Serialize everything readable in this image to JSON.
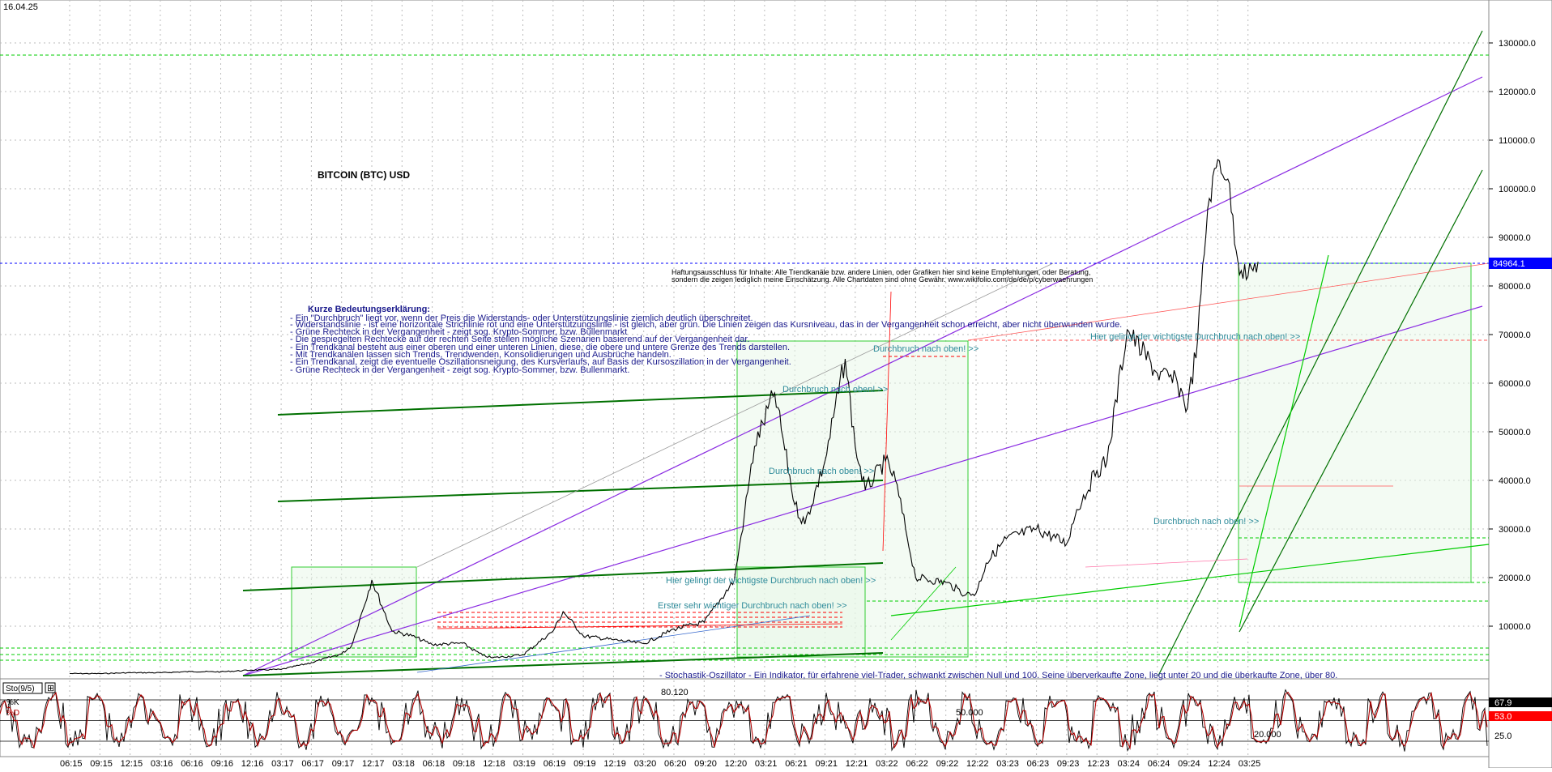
{
  "header": {
    "date": "16.04.25"
  },
  "title": "BITCOIN (BTC) USD",
  "price_marker": {
    "value": "84964.1",
    "color": "#0000ff"
  },
  "disclaimer": {
    "line1": "Haftungsausschluss für Inhalte: Alle Trendkanäle bzw. andere Linien, oder Grafiken hier sind keine Empfehlungen, oder Beratung,",
    "line2": "sondern die zeigen lediglich meine  Einschätzung. Alle Chartdaten sind ohne Gewähr.  www.wikifolio.com/de/de/p/cyberwaehrungen"
  },
  "legend": {
    "heading": "Kurze Bedeutungserklärung:",
    "lines": [
      "- Ein \"Durchbruch\" liegt vor, wenn der Preis die Widerstands- oder Unterstützungslinie ziemlich deutlich überschreitet.",
      "- Widerstandslinie - ist eine horizontale Strichlinie rot und eine Unterstützungslinie - ist gleich, aber grün. Die Linien zeigen das Kursniveau, das in der Vergangenheit schon erreicht, aber nicht überwunden wurde.",
      "- Grüne Rechteck in der Vergangenheit - zeigt sog. Krypto-Sommer, bzw. Bullenmarkt",
      "- Die gespiegelten Rechtecke auf der rechten Seite stellen mögliche Szenarien basierend auf der Vergangenheit dar.",
      "- Ein Trendkanal besteht aus einer oberen und einer unteren Linien, diese, die obere und untere Grenze des Trends darstellen.",
      "- Mit Trendkanälen lassen sich Trends, Trendwenden, Konsolidierungen und Ausbrüche handeln.",
      "- Ein Trendkanal, zeigt die eventuelle Oszillationsneigung, des Kursverlaufs, auf Basis der Kursoszillation in der Vergangenheit.",
      "- Grüne Rechteck in der Vergangenheit - zeigt sog. Krypto-Sommer, bzw. Bullenmarkt."
    ]
  },
  "annotations": {
    "breakout_up": "Durchbruch nach oben! >>",
    "most_important_1": "Hier gelingt der wichtigste Durchbruch nach oben! >>",
    "first_important": "Erster sehr wichtiger Durchbruch nach oben! >>",
    "most_important_2": "Hier gelingt der wichtigste Durchbruch nach oben! >>",
    "stochastic_note": "- Stochastik-Oszillator - Ein Indikator, für erfahrene viel-Trader, schwankt zwischen Null und 100. Seine überverkaufte Zone, liegt unter 20 und die überkaufte Zone, über 80."
  },
  "oscillator": {
    "label": "Sto(9/5)",
    "k_label": "%K",
    "d_label": "%D",
    "level_80": "80.120",
    "level_50": "50.000",
    "level_20": "20.000",
    "k_value": "67.9",
    "d_value": "53.0",
    "axis_25": "25.0"
  },
  "chart_data": {
    "type": "line",
    "title": "BITCOIN (BTC) USD",
    "x_ticks": [
      "06:15",
      "09:15",
      "12:15",
      "03:16",
      "06:16",
      "09:16",
      "12:16",
      "03:17",
      "06:17",
      "09:17",
      "12:17",
      "03:18",
      "06:18",
      "09:18",
      "12:18",
      "03:19",
      "06:19",
      "09:19",
      "12:19",
      "03:20",
      "06:20",
      "09:20",
      "12:20",
      "03:21",
      "06:21",
      "09:21",
      "12:21",
      "03:22",
      "06:22",
      "09:22",
      "12:22",
      "03:23",
      "06:23",
      "09:23",
      "12:23",
      "03:24",
      "06:24",
      "09:24",
      "12:24",
      "03:25"
    ],
    "y_ticks": [
      "10000.0",
      "20000.0",
      "30000.0",
      "40000.0",
      "50000.0",
      "60000.0",
      "70000.0",
      "80000.0",
      "90000.0",
      "100000.0",
      "110000.0",
      "120000.0",
      "130000.0"
    ],
    "ylim": [
      0,
      135000
    ],
    "grid": true,
    "series": [
      {
        "name": "BTC",
        "color": "#000000",
        "x": [
          "06:15",
          "09:15",
          "12:15",
          "03:16",
          "06:16",
          "09:16",
          "12:16",
          "03:17",
          "06:17",
          "09:17",
          "10:17",
          "12:17",
          "02:18",
          "04:18",
          "06:18",
          "09:18",
          "11:18",
          "12:18",
          "03:19",
          "06:19",
          "07:19",
          "09:19",
          "12:19",
          "03:20",
          "06:20",
          "09:20",
          "12:20",
          "01:21",
          "02:21",
          "04:21",
          "06:21",
          "07:21",
          "09:21",
          "11:21",
          "12:21",
          "01:22",
          "03:22",
          "04:22",
          "05:22",
          "06:22",
          "09:22",
          "11:22",
          "12:22",
          "01:23",
          "03:23",
          "06:23",
          "09:23",
          "10:23",
          "12:23",
          "01:24",
          "03:24",
          "06:24",
          "08:24",
          "09:24",
          "10:24",
          "11:24",
          "12:24",
          "01:25",
          "02:25",
          "03:25",
          "04:25"
        ],
        "values": [
          250,
          240,
          430,
          420,
          670,
          610,
          960,
          1100,
          2500,
          4300,
          6000,
          19500,
          9000,
          8000,
          6200,
          6500,
          4000,
          3500,
          4100,
          9000,
          13000,
          8000,
          7200,
          6400,
          9400,
          10800,
          19500,
          33000,
          47000,
          58000,
          35000,
          31000,
          44000,
          65000,
          47000,
          38000,
          44000,
          40000,
          30000,
          20000,
          19000,
          16500,
          16800,
          23000,
          28000,
          30000,
          27000,
          34000,
          42000,
          44000,
          71000,
          62000,
          60000,
          55000,
          69000,
          96000,
          106000,
          102000,
          85000,
          82000,
          84964
        ]
      }
    ]
  },
  "styles": {
    "channel_purple": "#8a2be2",
    "channel_green": "#007000",
    "light_green": "#00cc00",
    "resistance_red": "#ff0000",
    "annotation_teal": "#2e8b9a",
    "legend_navy": "#1a1a8c",
    "osc_red": "#b00000"
  }
}
